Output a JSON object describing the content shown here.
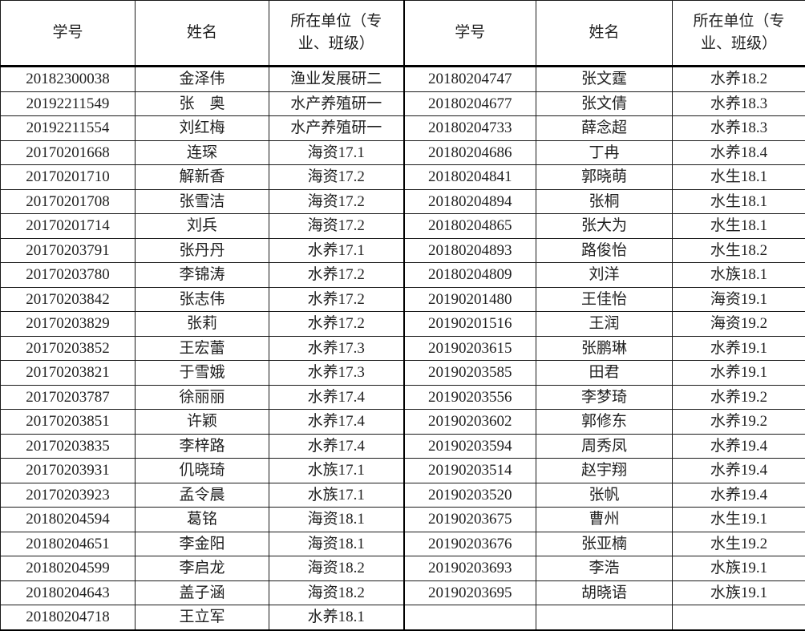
{
  "table": {
    "headers": {
      "student_id": "学号",
      "name": "姓名",
      "unit": "所在单位（专业、班级）"
    },
    "colors": {
      "border": "#1a1a1a",
      "thick_border": "#000000",
      "text": "#1f1f1f",
      "background": "#ffffff"
    },
    "left_rows": [
      {
        "id": "20182300038",
        "name": "金泽伟",
        "unit": "渔业发展研二"
      },
      {
        "id": "20192211549",
        "name": "张　奥",
        "unit": "水产养殖研一"
      },
      {
        "id": "20192211554",
        "name": "刘红梅",
        "unit": "水产养殖研一"
      },
      {
        "id": "20170201668",
        "name": "连琛",
        "unit": "海资17.1"
      },
      {
        "id": "20170201710",
        "name": "解新香",
        "unit": "海资17.2"
      },
      {
        "id": "20170201708",
        "name": "张雪洁",
        "unit": "海资17.2"
      },
      {
        "id": "20170201714",
        "name": "刘兵",
        "unit": "海资17.2"
      },
      {
        "id": "20170203791",
        "name": "张丹丹",
        "unit": "水养17.1"
      },
      {
        "id": "20170203780",
        "name": "李锦涛",
        "unit": "水养17.2"
      },
      {
        "id": "20170203842",
        "name": "张志伟",
        "unit": "水养17.2"
      },
      {
        "id": "20170203829",
        "name": "张莉",
        "unit": "水养17.2"
      },
      {
        "id": "20170203852",
        "name": "王宏蕾",
        "unit": "水养17.3"
      },
      {
        "id": "20170203821",
        "name": "于雪娥",
        "unit": "水养17.3"
      },
      {
        "id": "20170203787",
        "name": "徐丽丽",
        "unit": "水养17.4"
      },
      {
        "id": "20170203851",
        "name": "许颖",
        "unit": "水养17.4"
      },
      {
        "id": "20170203835",
        "name": "李梓路",
        "unit": "水养17.4"
      },
      {
        "id": "20170203931",
        "name": "仉晓琦",
        "unit": "水族17.1"
      },
      {
        "id": "20170203923",
        "name": "孟令晨",
        "unit": "水族17.1"
      },
      {
        "id": "20180204594",
        "name": "葛铭",
        "unit": "海资18.1"
      },
      {
        "id": "20180204651",
        "name": "李金阳",
        "unit": "海资18.1"
      },
      {
        "id": "20180204599",
        "name": "李启龙",
        "unit": "海资18.2"
      },
      {
        "id": "20180204643",
        "name": "盖子涵",
        "unit": "海资18.2"
      },
      {
        "id": "20180204718",
        "name": "王立军",
        "unit": "水养18.1"
      }
    ],
    "right_rows": [
      {
        "id": "20180204747",
        "name": "张文霆",
        "unit": "水养18.2"
      },
      {
        "id": "20180204677",
        "name": "张文倩",
        "unit": "水养18.3"
      },
      {
        "id": "20180204733",
        "name": "薛念超",
        "unit": "水养18.3"
      },
      {
        "id": "20180204686",
        "name": "丁冉",
        "unit": "水养18.4"
      },
      {
        "id": "20180204841",
        "name": "郭晓萌",
        "unit": "水生18.1"
      },
      {
        "id": "20180204894",
        "name": "张桐",
        "unit": "水生18.1"
      },
      {
        "id": "20180204865",
        "name": "张大为",
        "unit": "水生18.1"
      },
      {
        "id": "20180204893",
        "name": "路俊怡",
        "unit": "水生18.2"
      },
      {
        "id": "20180204809",
        "name": "刘洋",
        "unit": "水族18.1"
      },
      {
        "id": "20190201480",
        "name": "王佳怡",
        "unit": "海资19.1"
      },
      {
        "id": "20190201516",
        "name": "王润",
        "unit": "海资19.2"
      },
      {
        "id": "20190203615",
        "name": "张鹏琳",
        "unit": "水养19.1"
      },
      {
        "id": "20190203585",
        "name": "田君",
        "unit": "水养19.1"
      },
      {
        "id": "20190203556",
        "name": "李梦琦",
        "unit": "水养19.2"
      },
      {
        "id": "20190203602",
        "name": "郭修东",
        "unit": "水养19.2"
      },
      {
        "id": "20190203594",
        "name": "周秀凤",
        "unit": "水养19.4"
      },
      {
        "id": "20190203514",
        "name": "赵宇翔",
        "unit": "水养19.4"
      },
      {
        "id": "20190203520",
        "name": "张帆",
        "unit": "水养19.4"
      },
      {
        "id": "20190203675",
        "name": "曹州",
        "unit": "水生19.1"
      },
      {
        "id": "20190203676",
        "name": "张亚楠",
        "unit": "水生19.2"
      },
      {
        "id": "20190203693",
        "name": "李浩",
        "unit": "水族19.1"
      },
      {
        "id": "20190203695",
        "name": "胡晓语",
        "unit": "水族19.1"
      },
      {
        "id": "",
        "name": "",
        "unit": ""
      }
    ]
  }
}
